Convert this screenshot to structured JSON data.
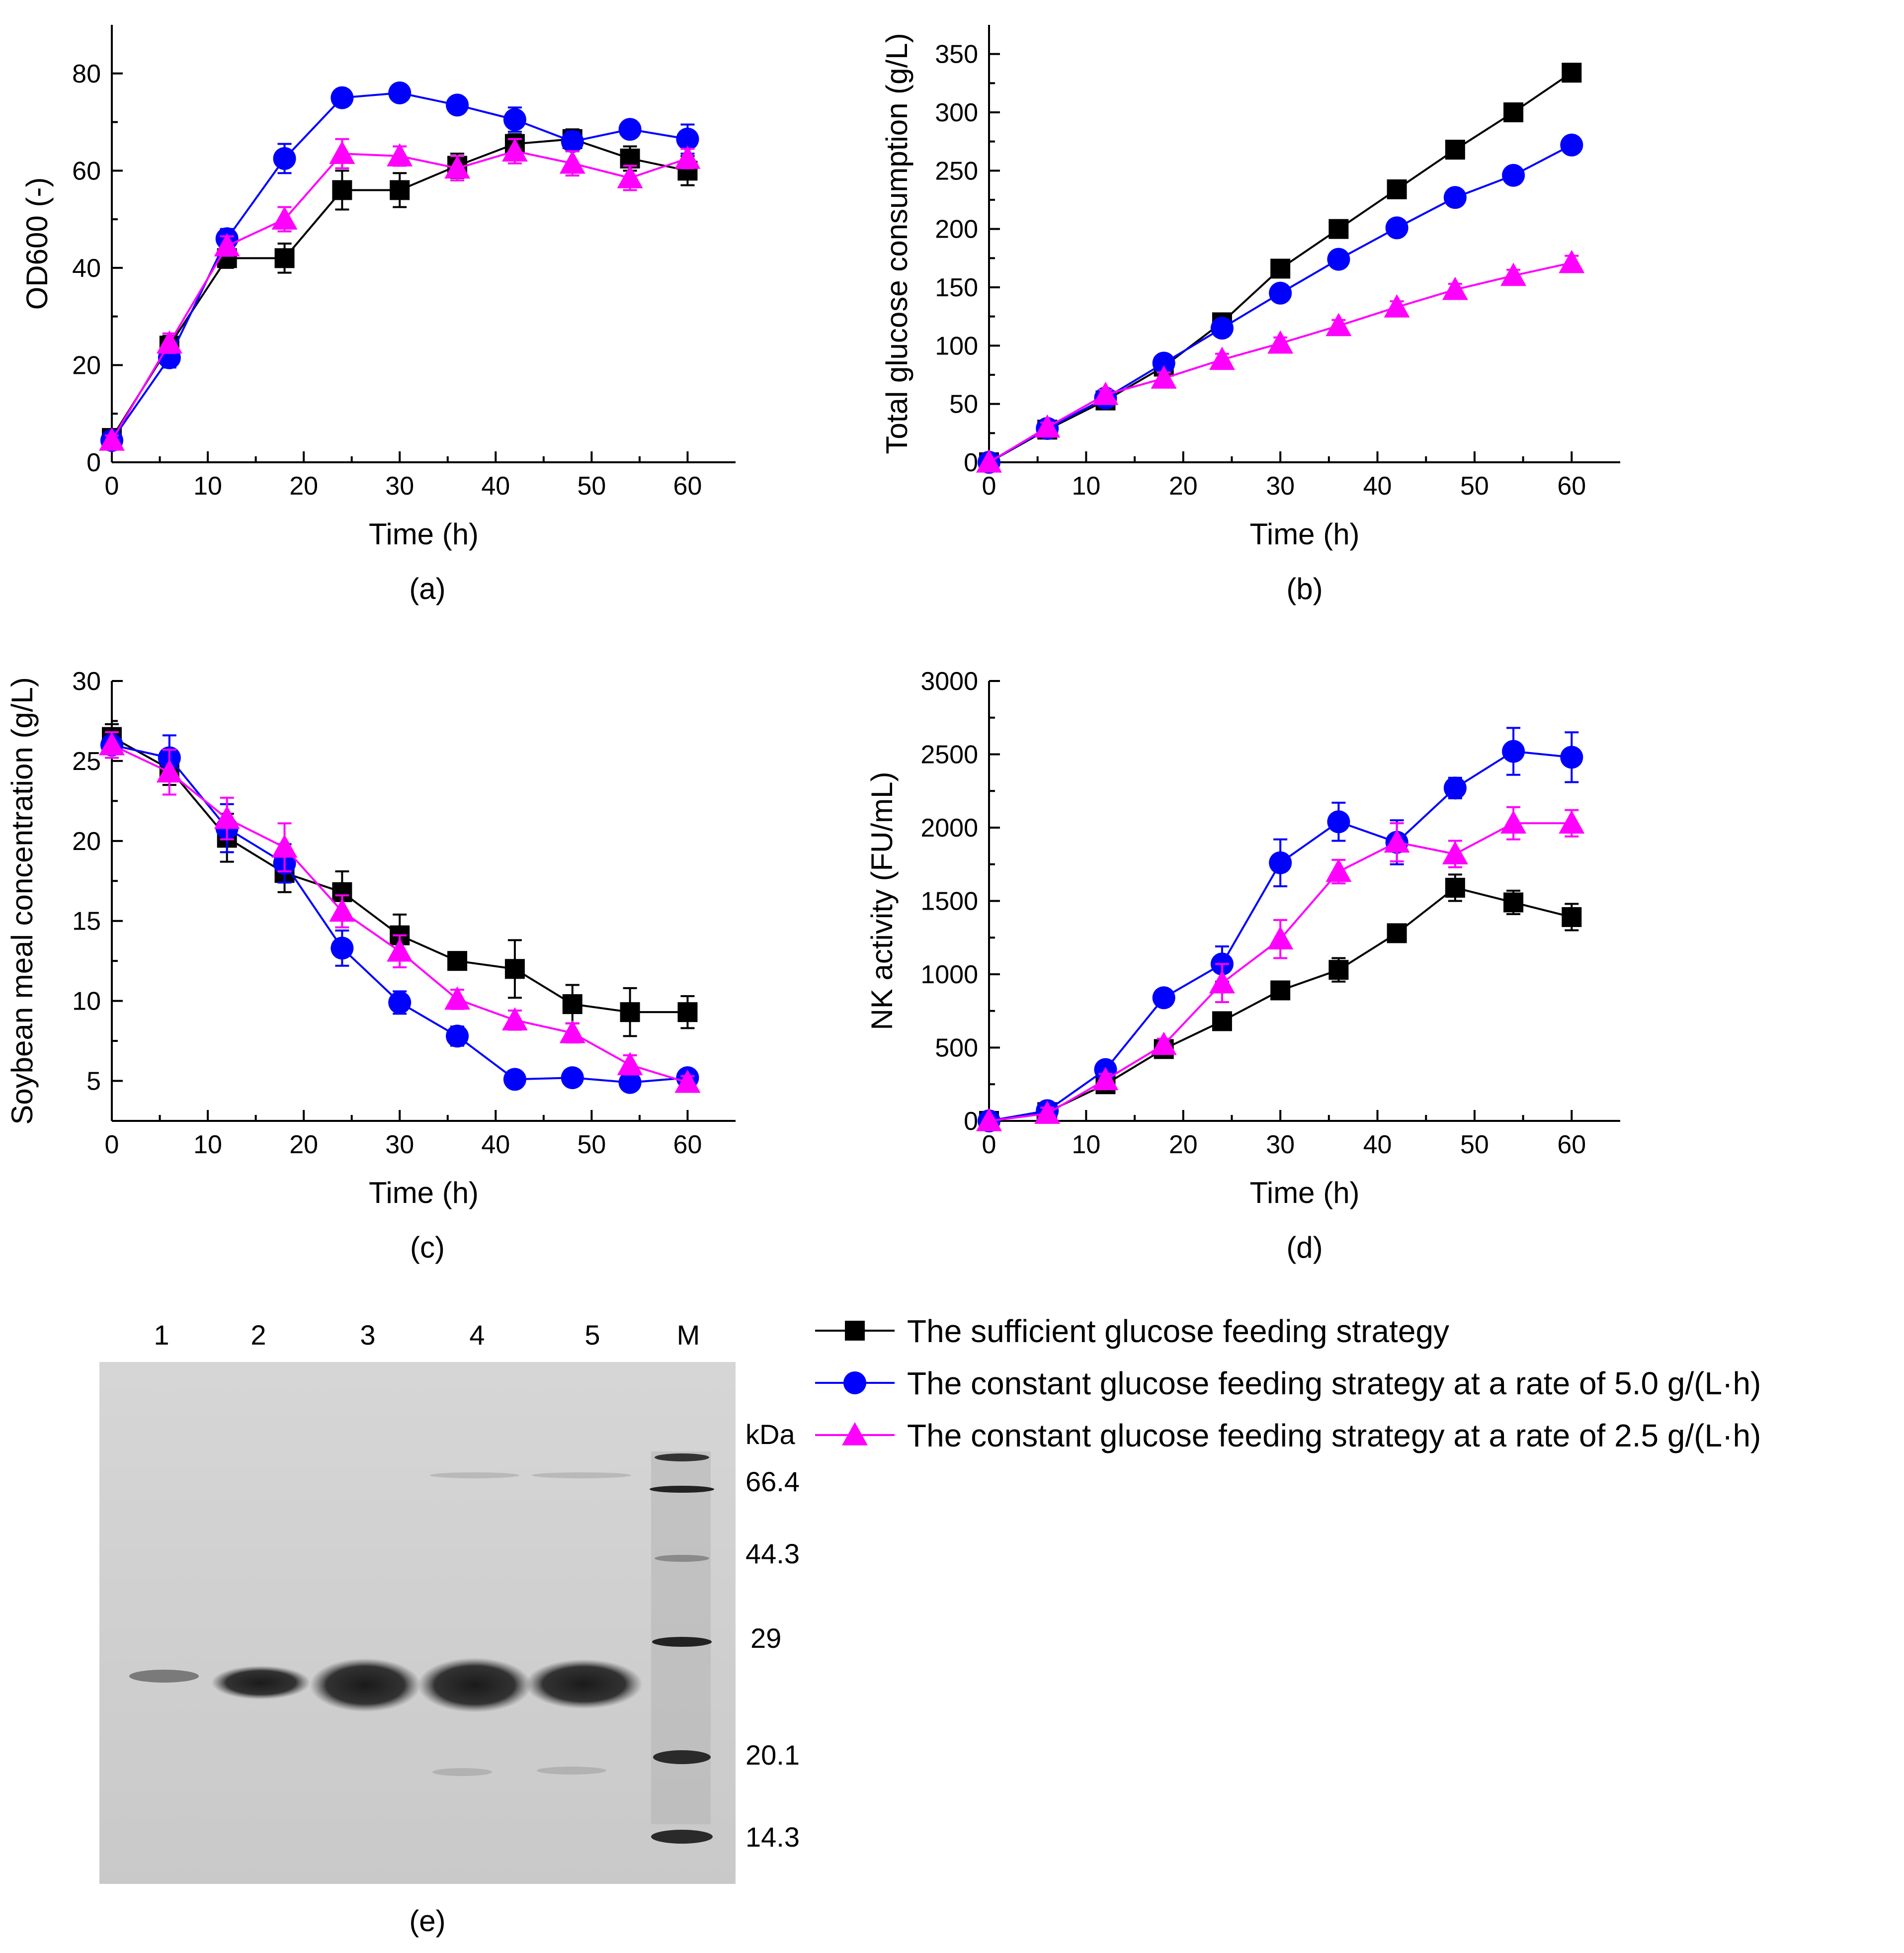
{
  "colors": {
    "sufficient": "#000000",
    "rate50": "#0000ff",
    "rate25": "#ff00ff"
  },
  "legend": [
    {
      "key": "sufficient",
      "marker": "square",
      "label": "The sufficient glucose feeding strategy"
    },
    {
      "key": "rate50",
      "marker": "circle",
      "label": "The constant glucose feeding strategy at a rate of 5.0 g/(L·h)"
    },
    {
      "key": "rate25",
      "marker": "triangle",
      "label": "The constant glucose feeding strategy at a rate of 2.5 g/(L·h)"
    }
  ],
  "chart_data": [
    {
      "id": "a",
      "type": "line",
      "panel_label": "(a)",
      "xlabel": "Time (h)",
      "ylabel": "OD600 (-)",
      "xlim": [
        0,
        65
      ],
      "ylim": [
        0,
        90
      ],
      "xticks": [
        0,
        10,
        20,
        30,
        40,
        50,
        60
      ],
      "yticks": [
        0,
        20,
        40,
        60,
        80
      ],
      "x": [
        0,
        6,
        12,
        18,
        24,
        30,
        36,
        42,
        48,
        54,
        60
      ],
      "series": [
        {
          "key": "sufficient",
          "name": "The sufficient glucose feeding strategy",
          "marker": "square",
          "values": [
            5,
            24,
            42,
            42,
            56,
            56,
            61,
            65.5,
            66.5,
            62.5,
            60
          ],
          "errors": [
            1,
            2,
            2,
            3,
            4,
            3.5,
            2.5,
            2,
            2,
            2.5,
            3
          ]
        },
        {
          "key": "rate50",
          "name": "The constant glucose feeding strategy at a rate of 5.0 g/(L·h)",
          "marker": "circle",
          "values": [
            4.5,
            21.5,
            46,
            62.5,
            75,
            76,
            73.5,
            70.5,
            66,
            68.5,
            66.5
          ],
          "errors": [
            1,
            2,
            2,
            3,
            1,
            1,
            1,
            2.5,
            2,
            1,
            3
          ]
        },
        {
          "key": "rate25",
          "name": "The constant glucose feeding strategy at a rate of 2.5 g/(L·h)",
          "marker": "triangle",
          "values": [
            4.5,
            24.5,
            44.5,
            50,
            63.5,
            63,
            60.5,
            64,
            61.5,
            58.5,
            62.5
          ],
          "errors": [
            1,
            2,
            2,
            2.5,
            3,
            2,
            2.5,
            2.5,
            2.5,
            2.5,
            2
          ]
        }
      ]
    },
    {
      "id": "b",
      "type": "line",
      "panel_label": "(b)",
      "xlabel": "Time (h)",
      "ylabel": "Total glucose consumption (g/L)",
      "xlim": [
        0,
        65
      ],
      "ylim": [
        0,
        375
      ],
      "xticks": [
        0,
        10,
        20,
        30,
        40,
        50,
        60
      ],
      "yticks": [
        0,
        50,
        100,
        150,
        200,
        250,
        300,
        350
      ],
      "x": [
        0,
        6,
        12,
        18,
        24,
        30,
        36,
        42,
        48,
        54,
        60
      ],
      "series": [
        {
          "key": "sufficient",
          "name": "The sufficient glucose feeding strategy",
          "marker": "square",
          "values": [
            0,
            28,
            53,
            82,
            120,
            166,
            200,
            234,
            268,
            300,
            334
          ],
          "errors": [
            0,
            4,
            4,
            5,
            5,
            5,
            5,
            5,
            5,
            5,
            5
          ]
        },
        {
          "key": "rate50",
          "name": "The constant glucose feeding strategy at a rate of 5.0 g/(L·h)",
          "marker": "circle",
          "values": [
            0,
            29,
            55,
            85,
            115,
            145,
            174,
            201,
            227,
            246,
            272
          ],
          "errors": [
            0,
            4,
            4,
            5,
            5,
            5,
            5,
            5,
            5,
            5,
            5
          ]
        },
        {
          "key": "rate25",
          "name": "The constant glucose feeding strategy at a rate of 2.5 g/(L·h)",
          "marker": "triangle",
          "values": [
            0,
            30,
            58,
            72,
            88,
            102,
            117,
            133,
            148,
            160,
            171
          ],
          "errors": [
            0,
            4,
            4,
            5,
            5,
            5,
            5,
            5,
            5,
            5,
            6
          ]
        }
      ]
    },
    {
      "id": "c",
      "type": "line",
      "panel_label": "(c)",
      "xlabel": "Time (h)",
      "ylabel": "Soybean meal concentration (g/L)",
      "xlim": [
        0,
        65
      ],
      "ylim": [
        2.5,
        30
      ],
      "xticks": [
        0,
        10,
        20,
        30,
        40,
        50,
        60
      ],
      "yticks": [
        5,
        10,
        15,
        20,
        25,
        30
      ],
      "x": [
        0,
        6,
        12,
        18,
        24,
        30,
        36,
        42,
        48,
        54,
        60
      ],
      "series": [
        {
          "key": "sufficient",
          "name": "The sufficient glucose feeding strategy",
          "marker": "square",
          "values": [
            26.5,
            24.5,
            20.2,
            18,
            16.8,
            14.1,
            12.5,
            12,
            9.8,
            9.3,
            9.3
          ],
          "errors": [
            0.8,
            1,
            1.5,
            1.2,
            1.3,
            1.3,
            0.5,
            1.8,
            1.2,
            1.5,
            1
          ]
        },
        {
          "key": "rate50",
          "name": "The constant glucose feeding strategy at a rate of 5.0 g/(L·h)",
          "marker": "circle",
          "values": [
            26,
            25.2,
            20.8,
            18.6,
            13.3,
            9.9,
            7.8,
            5.1,
            5.2,
            4.9,
            5.2
          ],
          "errors": [
            0.8,
            1.4,
            1.5,
            1.2,
            1.1,
            0.7,
            0.6,
            0.3,
            0.3,
            0.3,
            0.3
          ]
        },
        {
          "key": "rate25",
          "name": "The constant glucose feeding strategy at a rate of 2.5 g/(L·h)",
          "marker": "triangle",
          "values": [
            26,
            24.3,
            21.4,
            19.6,
            15.6,
            13.1,
            10.1,
            8.8,
            8,
            6,
            4.9
          ],
          "errors": [
            0.8,
            1.4,
            1.3,
            1.5,
            1,
            1,
            0.6,
            0.6,
            0.6,
            0.6,
            0.4
          ]
        }
      ]
    },
    {
      "id": "d",
      "type": "line",
      "panel_label": "(d)",
      "xlabel": "Time (h)",
      "ylabel": "NK activity (FU/mL)",
      "xlim": [
        0,
        65
      ],
      "ylim": [
        0,
        3000
      ],
      "xticks": [
        0,
        10,
        20,
        30,
        40,
        50,
        60
      ],
      "yticks": [
        0,
        500,
        1000,
        1500,
        2000,
        2500,
        3000
      ],
      "x": [
        0,
        6,
        12,
        18,
        24,
        30,
        36,
        42,
        48,
        54,
        60
      ],
      "series": [
        {
          "key": "sufficient",
          "name": "The sufficient glucose feeding strategy",
          "marker": "square",
          "values": [
            0,
            60,
            250,
            490,
            680,
            890,
            1030,
            1280,
            1590,
            1490,
            1390
          ],
          "errors": [
            0,
            40,
            40,
            40,
            40,
            40,
            80,
            40,
            90,
            80,
            90
          ]
        },
        {
          "key": "rate50",
          "name": "The constant glucose feeding strategy at a rate of 5.0 g/(L·h)",
          "marker": "circle",
          "values": [
            0,
            70,
            350,
            840,
            1070,
            1760,
            2040,
            1900,
            2270,
            2520,
            2480
          ],
          "errors": [
            0,
            40,
            40,
            40,
            120,
            160,
            130,
            150,
            70,
            160,
            170
          ]
        },
        {
          "key": "rate25",
          "name": "The constant glucose feeding strategy at a rate of 2.5 g/(L·h)",
          "marker": "triangle",
          "values": [
            0,
            50,
            280,
            520,
            940,
            1240,
            1700,
            1900,
            1820,
            2030,
            2030
          ],
          "errors": [
            0,
            40,
            40,
            40,
            130,
            130,
            80,
            130,
            90,
            110,
            90
          ]
        }
      ]
    }
  ],
  "gel": {
    "panel_label": "(e)",
    "lanes": [
      "1",
      "2",
      "3",
      "4",
      "5",
      "M"
    ],
    "unit": "kDa",
    "markers": [
      "66.4",
      "44.3",
      "29",
      "20.1",
      "14.3"
    ]
  }
}
